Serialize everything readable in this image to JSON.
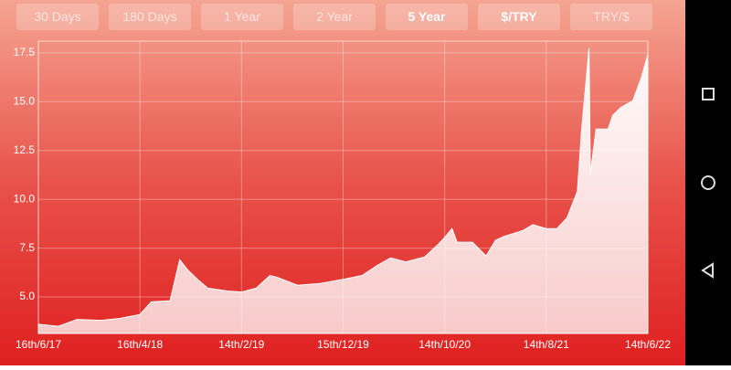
{
  "buttons": [
    "30 Days",
    "180 Days",
    "1 Year",
    "2 Year",
    "5 Year",
    "$/TRY",
    "TRY/$"
  ],
  "active_buttons": [
    4,
    5
  ],
  "chart_data": {
    "type": "area",
    "x": [
      "2017-06-16",
      "2017-08-15",
      "2017-10-10",
      "2017-12-20",
      "2018-02-15",
      "2018-04-16",
      "2018-05-20",
      "2018-07-15",
      "2018-08-13",
      "2018-09-05",
      "2018-10-05",
      "2018-11-05",
      "2019-01-05",
      "2019-02-14",
      "2019-03-30",
      "2019-05-10",
      "2019-06-01",
      "2019-08-01",
      "2019-10-10",
      "2019-12-15",
      "2020-02-10",
      "2020-03-25",
      "2020-05-05",
      "2020-06-20",
      "2020-08-15",
      "2020-09-25",
      "2020-10-14",
      "2020-11-05",
      "2020-11-20",
      "2021-01-05",
      "2021-02-15",
      "2021-03-15",
      "2021-04-10",
      "2021-06-05",
      "2021-07-05",
      "2021-08-14",
      "2021-09-15",
      "2021-10-15",
      "2021-11-15",
      "2021-11-28",
      "2021-12-20",
      "2021-12-24",
      "2022-01-10",
      "2022-02-15",
      "2022-03-01",
      "2022-03-25",
      "2022-04-30",
      "2022-05-25",
      "2022-06-14"
    ],
    "values": [
      3.6,
      3.5,
      3.85,
      3.8,
      3.9,
      4.1,
      4.75,
      4.8,
      6.9,
      6.4,
      5.9,
      5.45,
      5.3,
      5.25,
      5.45,
      6.1,
      6.0,
      5.6,
      5.7,
      5.9,
      6.1,
      6.6,
      7.0,
      6.8,
      7.05,
      7.7,
      8.05,
      8.5,
      7.8,
      7.8,
      7.1,
      7.9,
      8.1,
      8.4,
      8.7,
      8.5,
      8.5,
      9.05,
      10.4,
      13.6,
      17.75,
      11.3,
      13.6,
      13.6,
      14.3,
      14.7,
      15.05,
      16.2,
      17.4
    ],
    "xlim": [
      "2017-06-16",
      "2022-06-14"
    ],
    "xticks": [
      {
        "value": "2017-06-16",
        "label": "16th/6/17"
      },
      {
        "value": "2018-04-16",
        "label": "16th/4/18"
      },
      {
        "value": "2019-02-14",
        "label": "14th/2/19"
      },
      {
        "value": "2019-12-15",
        "label": "15th/12/19"
      },
      {
        "value": "2020-10-14",
        "label": "14th/10/20"
      },
      {
        "value": "2021-08-14",
        "label": "14th/8/21"
      },
      {
        "value": "2022-06-14",
        "label": "14th/6/22"
      }
    ],
    "ylim": [
      3.13,
      18.1
    ],
    "yticks": [
      {
        "value": 5,
        "label": "5.0"
      },
      7.5,
      {
        "value": 10,
        "label": "10.0"
      },
      12.5,
      {
        "value": 15,
        "label": "15.0"
      },
      17.5
    ],
    "grid": true,
    "color": "#ffffff"
  }
}
